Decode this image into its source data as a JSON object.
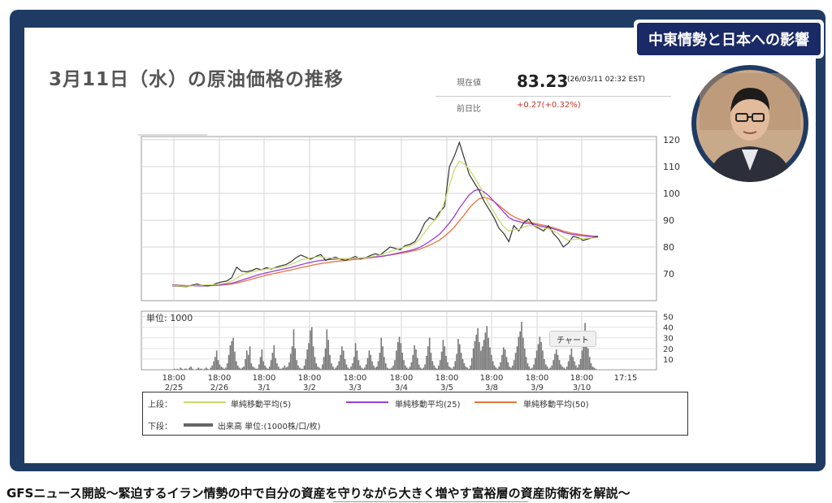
{
  "banner": {
    "title": "中東情勢と日本への影響"
  },
  "slide": {
    "title": "3月11日（水）の原油価格の推移"
  },
  "quote": {
    "current_label": "現在値",
    "price": "83.23",
    "timestamp": "(26/03/11 02:32 EST)",
    "change_label": "前日比",
    "change": "+0.27(+0.32%)"
  },
  "legend": {
    "upper_label": "上段：",
    "ma5": "単純移動平均(5)",
    "ma25": "単純移動平均(25)",
    "ma50": "単純移動平均(50)",
    "lower_label": "下段：",
    "volume": "出来高 単位:(1000株/口/枚)",
    "ma5_color": "#c8d96a",
    "ma25_color": "#9b3fd6",
    "ma50_color": "#e8743b"
  },
  "volume_unit": "単位: 1000",
  "tooltip": "チャート",
  "subtitle": "GFSニュース開設〜緊迫するイラン情勢の中で自分の資産を守りながら大きく増やす富裕層の資産防衛術を解説〜",
  "colors": {
    "frame": "#1f3b63",
    "banner": "#1a2a66",
    "change": "#c0392b",
    "volume": "#777777"
  },
  "chart_data": {
    "type": "line",
    "x_tick_labels": [
      [
        "18:00",
        "2/25"
      ],
      [
        "18:00",
        "2/26"
      ],
      [
        "18:00",
        "3/1"
      ],
      [
        "18:00",
        "3/2"
      ],
      [
        "18:00",
        "3/3"
      ],
      [
        "18:00",
        "3/4"
      ],
      [
        "18:00",
        "3/5"
      ],
      [
        "18:00",
        "3/8"
      ],
      [
        "18:00",
        "3/9"
      ],
      [
        "18:00",
        "3/10"
      ],
      [
        "17:15",
        ""
      ]
    ],
    "price_ylim": [
      60,
      120
    ],
    "price_yticks": [
      70,
      80,
      90,
      100,
      110,
      120
    ],
    "price": [
      65.5,
      65.4,
      65.3,
      65.2,
      65.8,
      66.2,
      65.7,
      65.5,
      65.8,
      66.5,
      67.0,
      67.3,
      68.5,
      72.5,
      71.0,
      70.8,
      71.2,
      72.0,
      71.5,
      72.3,
      71.8,
      72.5,
      73.0,
      73.5,
      74.5,
      76.0,
      77.0,
      76.2,
      75.5,
      76.5,
      77.2,
      75.0,
      75.8,
      76.2,
      75.5,
      75.0,
      75.8,
      76.5,
      75.5,
      76.0,
      76.8,
      77.5,
      77.0,
      78.5,
      80.0,
      79.5,
      79.0,
      80.5,
      81.0,
      82.0,
      85.0,
      89.0,
      91.0,
      90.0,
      93.0,
      95.0,
      110.0,
      114.0,
      119.0,
      113.0,
      107.0,
      104.0,
      101.0,
      97.0,
      94.0,
      91.0,
      87.0,
      85.0,
      82.0,
      88.0,
      86.0,
      89.0,
      90.5,
      88.0,
      87.0,
      86.0,
      88.0,
      85.0,
      83.0,
      80.0,
      81.5,
      84.0,
      83.5,
      82.5,
      83.0,
      83.5,
      84.0
    ],
    "ma5": [
      65.6,
      65.5,
      65.4,
      65.4,
      65.5,
      65.7,
      65.8,
      65.9,
      65.9,
      66.0,
      66.3,
      66.6,
      67.2,
      68.4,
      69.5,
      70.3,
      70.8,
      71.1,
      71.5,
      71.8,
      72.0,
      72.2,
      72.5,
      72.9,
      73.5,
      74.3,
      75.2,
      75.6,
      76.0,
      76.3,
      76.4,
      76.0,
      75.9,
      75.8,
      75.7,
      75.6,
      75.7,
      75.9,
      75.9,
      76.0,
      76.3,
      76.6,
      77.0,
      77.6,
      78.3,
      78.9,
      79.5,
      80.0,
      80.5,
      81.3,
      83.0,
      85.5,
      88.0,
      90.0,
      92.0,
      97.0,
      103.0,
      109.0,
      112.0,
      111.0,
      109.0,
      106.0,
      103.0,
      99.5,
      96.0,
      93.0,
      90.0,
      87.5,
      86.0,
      86.5,
      86.5,
      87.5,
      88.0,
      88.0,
      87.5,
      87.0,
      86.8,
      86.0,
      85.0,
      83.5,
      82.5,
      82.8,
      83.0,
      83.2,
      83.3,
      83.4,
      83.5
    ],
    "ma25": [
      65.8,
      65.7,
      65.6,
      65.5,
      65.5,
      65.5,
      65.5,
      65.6,
      65.7,
      65.8,
      66.0,
      66.2,
      66.5,
      67.0,
      67.6,
      68.2,
      68.8,
      69.4,
      69.9,
      70.4,
      70.8,
      71.2,
      71.6,
      72.0,
      72.4,
      72.9,
      73.4,
      73.9,
      74.3,
      74.7,
      75.0,
      75.2,
      75.4,
      75.5,
      75.6,
      75.6,
      75.7,
      75.8,
      75.9,
      76.0,
      76.1,
      76.3,
      76.5,
      76.8,
      77.1,
      77.5,
      77.9,
      78.3,
      78.7,
      79.2,
      79.9,
      80.9,
      82.1,
      83.4,
      84.8,
      86.8,
      89.0,
      91.5,
      94.5,
      97.0,
      99.5,
      101.0,
      101.5,
      100.5,
      99.0,
      97.0,
      95.0,
      93.0,
      91.0,
      90.0,
      89.5,
      89.0,
      88.8,
      88.5,
      88.0,
      87.6,
      87.3,
      86.8,
      86.2,
      85.5,
      85.0,
      84.7,
      84.4,
      84.2,
      84.0,
      83.9,
      83.8
    ],
    "ma50": [
      65.9,
      65.8,
      65.7,
      65.6,
      65.6,
      65.5,
      65.5,
      65.5,
      65.6,
      65.7,
      65.8,
      66.0,
      66.2,
      66.6,
      67.0,
      67.5,
      68.0,
      68.5,
      69.0,
      69.5,
      69.9,
      70.3,
      70.7,
      71.1,
      71.5,
      71.9,
      72.3,
      72.7,
      73.1,
      73.5,
      73.8,
      74.1,
      74.4,
      74.6,
      74.8,
      75.0,
      75.2,
      75.4,
      75.6,
      75.8,
      76.0,
      76.2,
      76.4,
      76.7,
      77.0,
      77.3,
      77.6,
      77.9,
      78.3,
      78.7,
      79.2,
      79.9,
      80.7,
      81.6,
      82.6,
      84.0,
      85.6,
      87.5,
      89.8,
      92.0,
      94.5,
      96.5,
      98.0,
      98.5,
      98.0,
      97.0,
      95.5,
      94.0,
      92.5,
      91.3,
      90.5,
      89.8,
      89.3,
      88.9,
      88.5,
      88.1,
      87.7,
      87.2,
      86.6,
      86.0,
      85.5,
      85.1,
      84.8,
      84.5,
      84.3,
      84.1,
      84.0
    ],
    "volume_ylim": [
      0,
      55
    ],
    "volume_yticks": [
      10,
      20,
      30,
      40,
      50
    ],
    "volume": [
      0,
      1,
      0,
      1,
      0,
      2,
      1,
      0,
      1,
      1,
      0,
      2,
      3,
      1,
      0,
      0,
      1,
      2,
      1,
      1,
      0,
      1,
      2,
      1,
      0,
      2,
      4,
      8,
      12,
      18,
      9,
      5,
      3,
      2,
      1,
      2,
      6,
      14,
      23,
      27,
      30,
      17,
      8,
      4,
      2,
      1,
      2,
      3,
      10,
      18,
      14,
      22,
      6,
      3,
      2,
      1,
      1,
      5,
      12,
      19,
      8,
      4,
      2,
      1,
      3,
      9,
      16,
      23,
      11,
      6,
      3,
      1,
      1,
      2,
      4,
      2,
      3,
      7,
      15,
      22,
      38,
      20,
      9,
      4,
      2,
      1,
      1,
      4,
      10,
      19,
      25,
      37,
      40,
      22,
      12,
      6,
      3,
      2,
      1,
      5,
      12,
      20,
      38,
      28,
      14,
      6,
      3,
      1,
      2,
      4,
      8,
      14,
      22,
      18,
      10,
      5,
      2,
      1,
      3,
      6,
      12,
      25,
      18,
      9,
      4,
      2,
      1,
      2,
      5,
      11,
      18,
      14,
      8,
      4,
      2,
      3,
      8,
      16,
      30,
      22,
      12,
      6,
      2,
      1,
      1,
      2,
      4,
      9,
      18,
      26,
      31,
      25,
      16,
      9,
      4,
      2,
      1,
      3,
      7,
      14,
      23,
      19,
      11,
      5,
      2,
      1,
      2,
      5,
      13,
      22,
      30,
      16,
      8,
      4,
      2,
      1,
      4,
      9,
      17,
      28,
      22,
      13,
      7,
      3,
      2,
      1,
      3,
      8,
      15,
      29,
      24,
      16,
      10,
      6,
      3,
      2,
      1,
      4,
      11,
      20,
      27,
      33,
      39,
      26,
      18,
      22,
      28,
      35,
      41,
      30,
      21,
      14,
      8,
      4,
      2,
      1,
      3,
      7,
      14,
      21,
      19,
      12,
      7,
      3,
      2,
      4,
      9,
      16,
      22,
      31,
      36,
      45,
      30,
      20,
      12,
      6,
      3,
      1,
      2,
      5,
      11,
      18,
      24,
      31,
      26,
      18,
      10,
      5,
      3,
      1,
      2,
      4,
      9,
      15,
      19,
      14,
      9,
      5,
      3,
      2,
      1,
      3,
      8,
      14,
      20,
      12,
      8,
      4,
      2,
      5,
      10,
      18,
      26,
      44,
      30,
      20,
      12,
      6,
      3,
      2,
      1,
      0
    ]
  }
}
